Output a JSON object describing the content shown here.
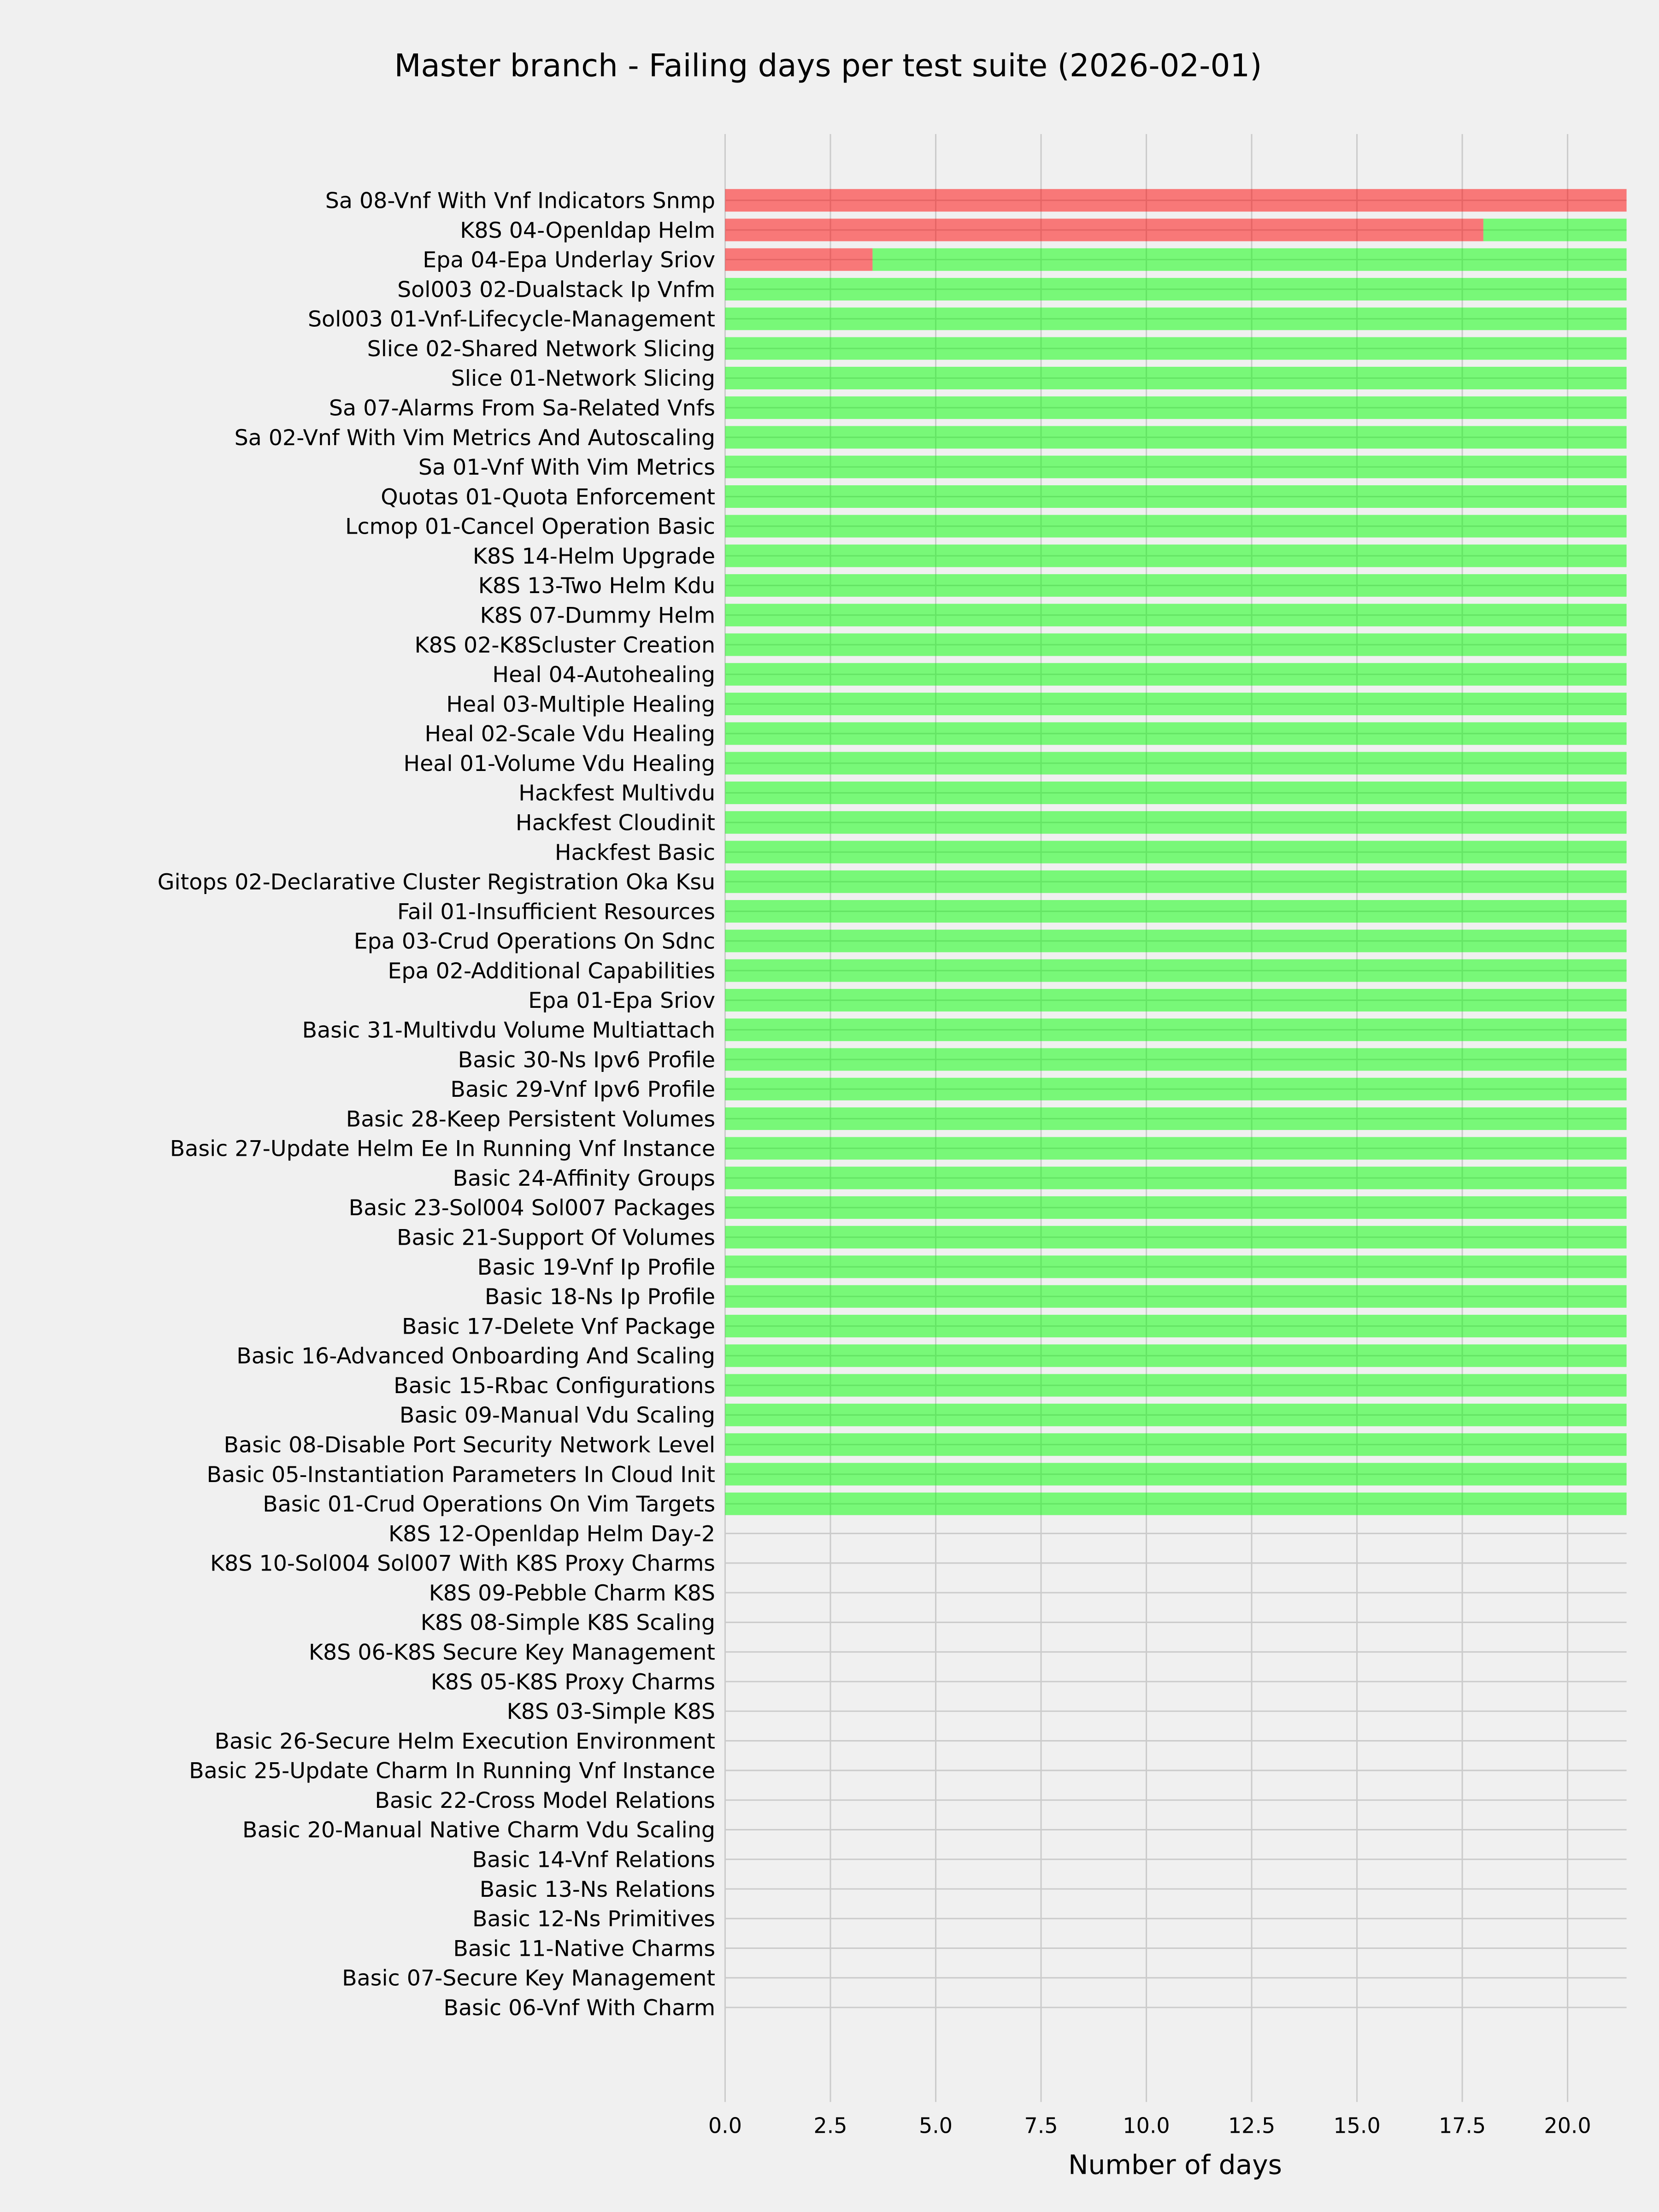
{
  "chart_data": {
    "type": "bar",
    "orientation": "horizontal",
    "stacked": true,
    "title": "Master branch - Failing days per test suite (2026-02-01)",
    "xlabel": "Number of days",
    "ylabel": "",
    "xlim": [
      0,
      21.4
    ],
    "xticks": [
      "0.0",
      "2.5",
      "5.0",
      "7.5",
      "10.0",
      "12.5",
      "15.0",
      "17.5",
      "20.0"
    ],
    "grid": true,
    "legend": "none",
    "categories": [
      "Sa 08-Vnf With Vnf Indicators Snmp",
      "K8S 04-Openldap Helm",
      "Epa 04-Epa Underlay Sriov",
      "Sol003 02-Dualstack Ip Vnfm",
      "Sol003 01-Vnf-Lifecycle-Management",
      "Slice 02-Shared Network Slicing",
      "Slice 01-Network Slicing",
      "Sa 07-Alarms From Sa-Related Vnfs",
      "Sa 02-Vnf With Vim Metrics And Autoscaling",
      "Sa 01-Vnf With Vim Metrics",
      "Quotas 01-Quota Enforcement",
      "Lcmop 01-Cancel Operation Basic",
      "K8S 14-Helm Upgrade",
      "K8S 13-Two Helm Kdu",
      "K8S 07-Dummy Helm",
      "K8S 02-K8Scluster Creation",
      "Heal 04-Autohealing",
      "Heal 03-Multiple Healing",
      "Heal 02-Scale Vdu Healing",
      "Heal 01-Volume Vdu Healing",
      "Hackfest Multivdu",
      "Hackfest Cloudinit",
      "Hackfest Basic",
      "Gitops 02-Declarative Cluster Registration Oka Ksu",
      "Fail 01-Insufficient Resources",
      "Epa 03-Crud Operations On Sdnc",
      "Epa 02-Additional Capabilities",
      "Epa 01-Epa Sriov",
      "Basic 31-Multivdu Volume Multiattach",
      "Basic 30-Ns Ipv6 Profile",
      "Basic 29-Vnf Ipv6 Profile",
      "Basic 28-Keep Persistent Volumes",
      "Basic 27-Update Helm Ee In Running Vnf Instance",
      "Basic 24-Affinity Groups",
      "Basic 23-Sol004 Sol007 Packages",
      "Basic 21-Support Of Volumes",
      "Basic 19-Vnf Ip Profile",
      "Basic 18-Ns Ip Profile",
      "Basic 17-Delete Vnf Package",
      "Basic 16-Advanced Onboarding And Scaling",
      "Basic 15-Rbac Configurations",
      "Basic 09-Manual Vdu Scaling",
      "Basic 08-Disable Port Security Network Level",
      "Basic 05-Instantiation Parameters In Cloud Init",
      "Basic 01-Crud Operations On Vim Targets",
      "K8S 12-Openldap Helm Day-2",
      "K8S 10-Sol004 Sol007 With K8S Proxy Charms",
      "K8S 09-Pebble Charm K8S",
      "K8S 08-Simple K8S Scaling",
      "K8S 06-K8S Secure Key Management",
      "K8S 05-K8S Proxy Charms",
      "K8S 03-Simple K8S",
      "Basic 26-Secure Helm Execution Environment",
      "Basic 25-Update Charm In Running Vnf Instance",
      "Basic 22-Cross Model Relations",
      "Basic 20-Manual Native Charm Vdu Scaling",
      "Basic 14-Vnf Relations",
      "Basic 13-Ns Relations",
      "Basic 12-Ns Primitives",
      "Basic 11-Native Charms",
      "Basic 07-Secure Key Management",
      "Basic 06-Vnf With Charm"
    ],
    "series": [
      {
        "color": "#ff0000",
        "opacity": 0.5,
        "values": [
          21.4,
          18,
          3.5,
          0,
          0,
          0,
          0,
          0,
          0,
          0,
          0,
          0,
          0,
          0,
          0,
          0,
          0,
          0,
          0,
          0,
          0,
          0,
          0,
          0,
          0,
          0,
          0,
          0,
          0,
          0,
          0,
          0,
          0,
          0,
          0,
          0,
          0,
          0,
          0,
          0,
          0,
          0,
          0,
          0,
          0,
          0,
          0,
          0,
          0,
          0,
          0,
          0,
          0,
          0,
          0,
          0,
          0,
          0,
          0,
          0,
          0,
          0
        ]
      },
      {
        "color": "#00ff00",
        "opacity": 0.5,
        "values": [
          0,
          3.4,
          17.9,
          21.4,
          21.4,
          21.4,
          21.4,
          21.4,
          21.4,
          21.4,
          21.4,
          21.4,
          21.4,
          21.4,
          21.4,
          21.4,
          21.4,
          21.4,
          21.4,
          21.4,
          21.4,
          21.4,
          21.4,
          21.4,
          21.4,
          21.4,
          21.4,
          21.4,
          21.4,
          21.4,
          21.4,
          21.4,
          21.4,
          21.4,
          21.4,
          21.4,
          21.4,
          21.4,
          21.4,
          21.4,
          21.4,
          21.4,
          21.4,
          21.4,
          21.4,
          0,
          0,
          0,
          0,
          0,
          0,
          0,
          0,
          0,
          0,
          0,
          0,
          0,
          0,
          0,
          0,
          0
        ]
      }
    ],
    "background": "#f0f0f0"
  }
}
